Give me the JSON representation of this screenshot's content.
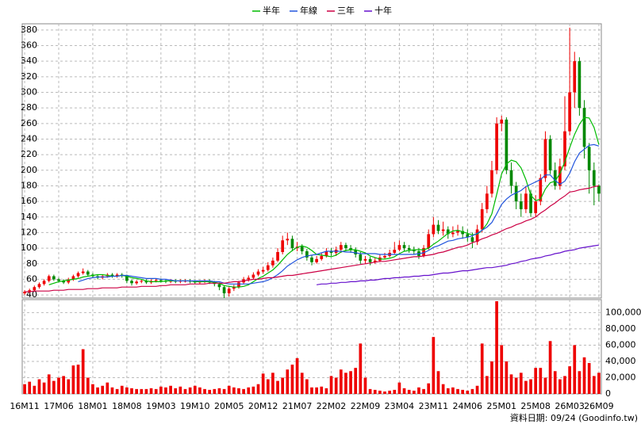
{
  "chart_data": {
    "type": "candlestick",
    "legend": "top",
    "footnote": "資料日期: 09/24 (Goodinfo.tw)",
    "categories": [
      "16M11",
      null,
      null,
      null,
      null,
      null,
      null,
      "17M06",
      null,
      null,
      null,
      null,
      null,
      null,
      "18M01",
      null,
      null,
      null,
      null,
      null,
      null,
      "18M08",
      null,
      null,
      null,
      null,
      null,
      null,
      "19M03",
      null,
      null,
      null,
      null,
      null,
      null,
      "19M10",
      null,
      null,
      null,
      null,
      null,
      null,
      "20M05",
      null,
      null,
      null,
      null,
      null,
      null,
      "20M12",
      null,
      null,
      null,
      null,
      null,
      null,
      "21M07",
      null,
      null,
      null,
      null,
      null,
      null,
      "22M02",
      null,
      null,
      null,
      null,
      null,
      null,
      "22M09",
      null,
      null,
      null,
      null,
      null,
      null,
      "23M04",
      null,
      null,
      null,
      null,
      null,
      null,
      "23M11",
      null,
      null,
      null,
      null,
      null,
      null,
      "24M06",
      null,
      null,
      null,
      null,
      null,
      null,
      "25M01",
      null,
      null,
      null,
      null,
      null,
      null,
      "25M08",
      null,
      null,
      null,
      null,
      null,
      null,
      "26M03",
      null,
      null,
      null,
      null,
      null,
      "26M09"
    ],
    "open": [
      42,
      44,
      46,
      50,
      54,
      58,
      64,
      60,
      58,
      56,
      60,
      64,
      68,
      70,
      66,
      64,
      62,
      64,
      66,
      64,
      66,
      65,
      58,
      55,
      57,
      58,
      56,
      58,
      59,
      58,
      57,
      58,
      57,
      58,
      58,
      57,
      56,
      57,
      58,
      56,
      54,
      50,
      42,
      48,
      50,
      56,
      60,
      62,
      66,
      70,
      72,
      78,
      84,
      95,
      110,
      112,
      100,
      102,
      96,
      88,
      82,
      86,
      90,
      96,
      94,
      98,
      104,
      100,
      98,
      92,
      84,
      86,
      82,
      84,
      88,
      90,
      94,
      98,
      104,
      100,
      98,
      96,
      90,
      100,
      118,
      130,
      122,
      124,
      118,
      120,
      122,
      118,
      114,
      108,
      124,
      150,
      170,
      200,
      260,
      265,
      200,
      180,
      160,
      150,
      170,
      145,
      160,
      190,
      240,
      200,
      180,
      205,
      250,
      300,
      340,
      280,
      230,
      200,
      180
    ],
    "high": [
      46,
      48,
      52,
      56,
      60,
      66,
      66,
      62,
      60,
      62,
      66,
      70,
      74,
      72,
      68,
      66,
      66,
      68,
      68,
      68,
      68,
      66,
      60,
      59,
      60,
      60,
      60,
      61,
      61,
      60,
      60,
      60,
      60,
      60,
      60,
      59,
      59,
      60,
      60,
      58,
      56,
      52,
      50,
      53,
      58,
      63,
      65,
      69,
      73,
      76,
      82,
      88,
      100,
      116,
      120,
      116,
      108,
      105,
      99,
      91,
      90,
      94,
      100,
      100,
      102,
      108,
      107,
      104,
      101,
      95,
      90,
      89,
      88,
      92,
      94,
      98,
      108,
      110,
      108,
      104,
      102,
      100,
      104,
      124,
      140,
      136,
      134,
      128,
      128,
      130,
      128,
      124,
      120,
      130,
      158,
      180,
      212,
      268,
      270,
      268,
      210,
      185,
      170,
      180,
      175,
      168,
      195,
      250,
      245,
      210,
      215,
      295,
      383,
      352,
      345,
      290,
      235,
      210,
      182
    ],
    "low": [
      40,
      42,
      44,
      48,
      52,
      56,
      58,
      56,
      54,
      54,
      58,
      62,
      66,
      64,
      62,
      60,
      60,
      62,
      62,
      62,
      62,
      55,
      52,
      53,
      55,
      54,
      54,
      56,
      56,
      55,
      55,
      55,
      55,
      56,
      55,
      54,
      54,
      55,
      54,
      51,
      46,
      36,
      38,
      45,
      48,
      54,
      57,
      60,
      64,
      67,
      70,
      75,
      82,
      92,
      104,
      96,
      96,
      92,
      84,
      78,
      80,
      84,
      88,
      90,
      90,
      94,
      96,
      94,
      88,
      80,
      80,
      78,
      80,
      82,
      86,
      88,
      92,
      96,
      96,
      94,
      92,
      86,
      88,
      98,
      114,
      118,
      116,
      112,
      114,
      116,
      112,
      108,
      100,
      104,
      120,
      145,
      165,
      195,
      250,
      195,
      170,
      150,
      140,
      145,
      140,
      140,
      155,
      185,
      195,
      175,
      175,
      200,
      245,
      280,
      270,
      215,
      170,
      155,
      160
    ],
    "close": [
      44,
      46,
      50,
      54,
      58,
      64,
      60,
      58,
      56,
      60,
      64,
      68,
      70,
      66,
      64,
      62,
      64,
      66,
      64,
      66,
      65,
      58,
      55,
      57,
      58,
      56,
      58,
      59,
      58,
      57,
      58,
      57,
      58,
      58,
      57,
      56,
      57,
      58,
      56,
      54,
      50,
      42,
      48,
      50,
      56,
      60,
      62,
      66,
      70,
      72,
      78,
      84,
      95,
      110,
      112,
      100,
      102,
      96,
      88,
      82,
      86,
      90,
      96,
      94,
      98,
      104,
      100,
      98,
      92,
      84,
      86,
      82,
      84,
      88,
      90,
      94,
      98,
      104,
      100,
      98,
      96,
      90,
      100,
      118,
      130,
      122,
      124,
      118,
      120,
      122,
      118,
      114,
      108,
      124,
      150,
      170,
      200,
      260,
      265,
      200,
      180,
      160,
      150,
      170,
      145,
      160,
      190,
      240,
      200,
      180,
      205,
      250,
      300,
      340,
      280,
      230,
      200,
      180,
      170
    ],
    "up_color": "#ee0000",
    "down_color": "#008800",
    "series": [
      {
        "name": "半年",
        "color": "#00bb00",
        "values": [
          null,
          null,
          null,
          null,
          null,
          53,
          55,
          57,
          58,
          59,
          60,
          61,
          63,
          64,
          65,
          66,
          66,
          65,
          64,
          64,
          65,
          64,
          62,
          61,
          60,
          58,
          57,
          57,
          57,
          58,
          58,
          58,
          58,
          58,
          58,
          57,
          57,
          57,
          57,
          56,
          55,
          52,
          51,
          50,
          50,
          51,
          53,
          57,
          61,
          64,
          68,
          72,
          78,
          85,
          92,
          97,
          101,
          103,
          101,
          97,
          92,
          91,
          90,
          89,
          91,
          95,
          97,
          98,
          98,
          96,
          94,
          90,
          88,
          86,
          86,
          87,
          89,
          93,
          96,
          97,
          98,
          98,
          98,
          100,
          105,
          109,
          114,
          119,
          122,
          123,
          121,
          119,
          117,
          118,
          123,
          131,
          144,
          169,
          195,
          208,
          213,
          211,
          203,
          188,
          168,
          161,
          163,
          176,
          184,
          186,
          196,
          211,
          229,
          246,
          259,
          268,
          267,
          255,
          233
        ]
      },
      {
        "name": "年線",
        "color": "#2255dd",
        "values": [
          null,
          null,
          null,
          null,
          null,
          null,
          null,
          null,
          null,
          null,
          null,
          57,
          59,
          61,
          62,
          63,
          63,
          63,
          64,
          64,
          65,
          65,
          64,
          63,
          62,
          61,
          61,
          61,
          60,
          60,
          59,
          58,
          58,
          58,
          58,
          58,
          58,
          58,
          58,
          57,
          57,
          55,
          54,
          54,
          54,
          54,
          54,
          55,
          56,
          57,
          59,
          62,
          66,
          71,
          77,
          81,
          85,
          88,
          90,
          91,
          92,
          94,
          96,
          96,
          96,
          96,
          95,
          95,
          94,
          93,
          93,
          93,
          93,
          92,
          92,
          92,
          92,
          92,
          92,
          92,
          92,
          93,
          94,
          97,
          101,
          103,
          106,
          109,
          110,
          112,
          113,
          114,
          116,
          119,
          123,
          127,
          133,
          144,
          156,
          163,
          168,
          171,
          174,
          179,
          182,
          185,
          188,
          194,
          194,
          187,
          182,
          186,
          196,
          211,
          222,
          227,
          232,
          233,
          231
        ]
      },
      {
        "name": "三年",
        "color": "#cc0044",
        "values": [
          44,
          44,
          45,
          45,
          45,
          45,
          46,
          46,
          46,
          47,
          47,
          47,
          47,
          48,
          48,
          48,
          49,
          49,
          49,
          49,
          50,
          50,
          50,
          50,
          51,
          51,
          51,
          51,
          52,
          52,
          53,
          53,
          53,
          53,
          54,
          54,
          54,
          54,
          55,
          55,
          55,
          55,
          56,
          57,
          57,
          58,
          59,
          60,
          60,
          61,
          62,
          62,
          63,
          64,
          65,
          65,
          66,
          67,
          68,
          69,
          70,
          71,
          72,
          73,
          74,
          75,
          76,
          77,
          78,
          79,
          80,
          81,
          82,
          83,
          83,
          84,
          85,
          86,
          87,
          88,
          89,
          89,
          90,
          91,
          92,
          94,
          95,
          97,
          99,
          101,
          102,
          104,
          107,
          109,
          112,
          114,
          117,
          119,
          122,
          125,
          127,
          130,
          132,
          135,
          137,
          140,
          145,
          149,
          154,
          158,
          163,
          167,
          172,
          173,
          175,
          176,
          177,
          179,
          180
        ]
      },
      {
        "name": "十年",
        "color": "#6611cc",
        "values": [
          null,
          null,
          null,
          null,
          null,
          null,
          null,
          null,
          null,
          null,
          null,
          null,
          null,
          null,
          null,
          null,
          null,
          null,
          null,
          null,
          null,
          null,
          null,
          null,
          null,
          null,
          null,
          null,
          null,
          null,
          null,
          null,
          null,
          null,
          null,
          null,
          null,
          null,
          null,
          null,
          null,
          null,
          null,
          null,
          null,
          null,
          null,
          null,
          null,
          null,
          null,
          null,
          null,
          null,
          null,
          null,
          null,
          null,
          null,
          null,
          53,
          54,
          54,
          55,
          55,
          56,
          56,
          57,
          57,
          58,
          58,
          59,
          59,
          60,
          61,
          61,
          62,
          62,
          63,
          63,
          64,
          64,
          65,
          65,
          66,
          67,
          68,
          68,
          69,
          70,
          71,
          71,
          72,
          73,
          74,
          75,
          75,
          76,
          77,
          78,
          80,
          81,
          83,
          84,
          86,
          87,
          88,
          90,
          91,
          93,
          94,
          96,
          97,
          98,
          100,
          101,
          102,
          103,
          104
        ]
      }
    ],
    "ylim": [
      36,
      388
    ],
    "yticks": [
      40,
      60,
      80,
      100,
      120,
      140,
      160,
      180,
      200,
      220,
      240,
      260,
      280,
      300,
      320,
      340,
      360,
      380
    ],
    "grid": true,
    "volume": {
      "color": "#ee0000",
      "values": [
        12000,
        15000,
        10000,
        18000,
        14000,
        24000,
        16000,
        20000,
        22000,
        18000,
        35000,
        36000,
        55000,
        20000,
        12000,
        8000,
        10000,
        14000,
        8000,
        6000,
        10000,
        8000,
        7000,
        6000,
        6000,
        6000,
        7000,
        6000,
        9000,
        8000,
        10000,
        7000,
        9000,
        6000,
        8000,
        10000,
        8000,
        6000,
        5000,
        6000,
        7000,
        6000,
        10000,
        8000,
        7000,
        6000,
        8000,
        9000,
        12000,
        25000,
        18000,
        26000,
        16000,
        20000,
        30000,
        36000,
        44000,
        26000,
        18000,
        8000,
        8000,
        9000,
        7000,
        22000,
        20000,
        30000,
        26000,
        28000,
        32000,
        62000,
        20000,
        6000,
        5000,
        4000,
        3000,
        4000,
        5000,
        14000,
        7000,
        5000,
        4000,
        8000,
        6000,
        13000,
        70000,
        28000,
        12000,
        7000,
        8000,
        6000,
        5000,
        4000,
        6000,
        10000,
        62000,
        22000,
        40000,
        114000,
        60000,
        40000,
        24000,
        20000,
        26000,
        16000,
        18000,
        32000,
        32000,
        20000,
        65000,
        28000,
        18000,
        22000,
        34000,
        60000,
        28000,
        45000,
        38000,
        22000,
        26000
      ],
      "ylim": [
        0,
        116000
      ],
      "yticks": [
        0,
        {
          "value": 20000,
          "label": "20,000"
        },
        {
          "value": 40000,
          "label": "40,000"
        },
        {
          "value": 60000,
          "label": "60,000"
        },
        {
          "value": 80000,
          "label": "80,000"
        },
        {
          "value": 100000,
          "label": "100,000"
        }
      ]
    }
  }
}
